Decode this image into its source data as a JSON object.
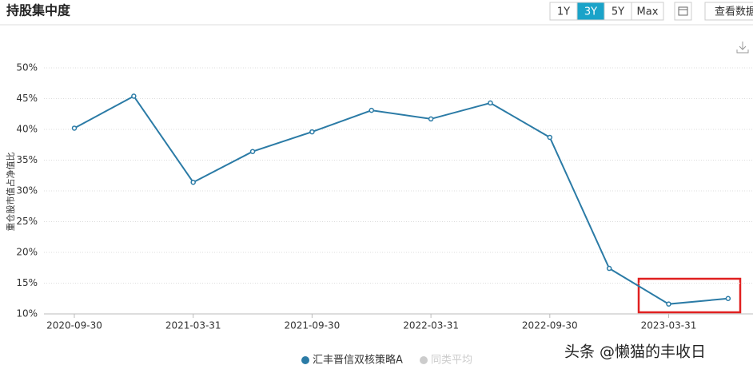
{
  "header": {
    "title": "持股集中度",
    "ranges": [
      "1Y",
      "3Y",
      "5Y",
      "Max"
    ],
    "active": "3Y",
    "view_data": "查看数据"
  },
  "chart_data": {
    "type": "line",
    "y_label": "重仓股市值占净值比",
    "categories": [
      "2020-09-30",
      null,
      "2021-03-31",
      null,
      "2021-09-30",
      null,
      "2022-03-31",
      null,
      "2022-09-30",
      null,
      "2023-03-31",
      null
    ],
    "series": [
      {
        "name": "汇丰晋信双核策略A",
        "color": "#2b7ba6",
        "values": [
          40.2,
          45.4,
          31.4,
          36.4,
          39.6,
          43.1,
          41.7,
          44.3,
          38.7,
          17.4,
          11.6,
          12.5
        ]
      }
    ],
    "inactive_legend": {
      "name": "同类平均",
      "color": "#cccccc"
    },
    "ylim": [
      10,
      50
    ],
    "yticks": [
      {
        "value": 10,
        "label": "10%"
      },
      {
        "value": 15,
        "label": "15%"
      },
      {
        "value": 20,
        "label": "20%"
      },
      {
        "value": 25,
        "label": "25%"
      },
      {
        "value": 30,
        "label": "30%"
      },
      {
        "value": 35,
        "label": "35%"
      },
      {
        "value": 40,
        "label": "40%"
      },
      {
        "value": 45,
        "label": "45%"
      },
      {
        "value": 50,
        "label": "50%"
      }
    ],
    "grid": true
  },
  "watermark": "头条 @懒猫的丰收日"
}
